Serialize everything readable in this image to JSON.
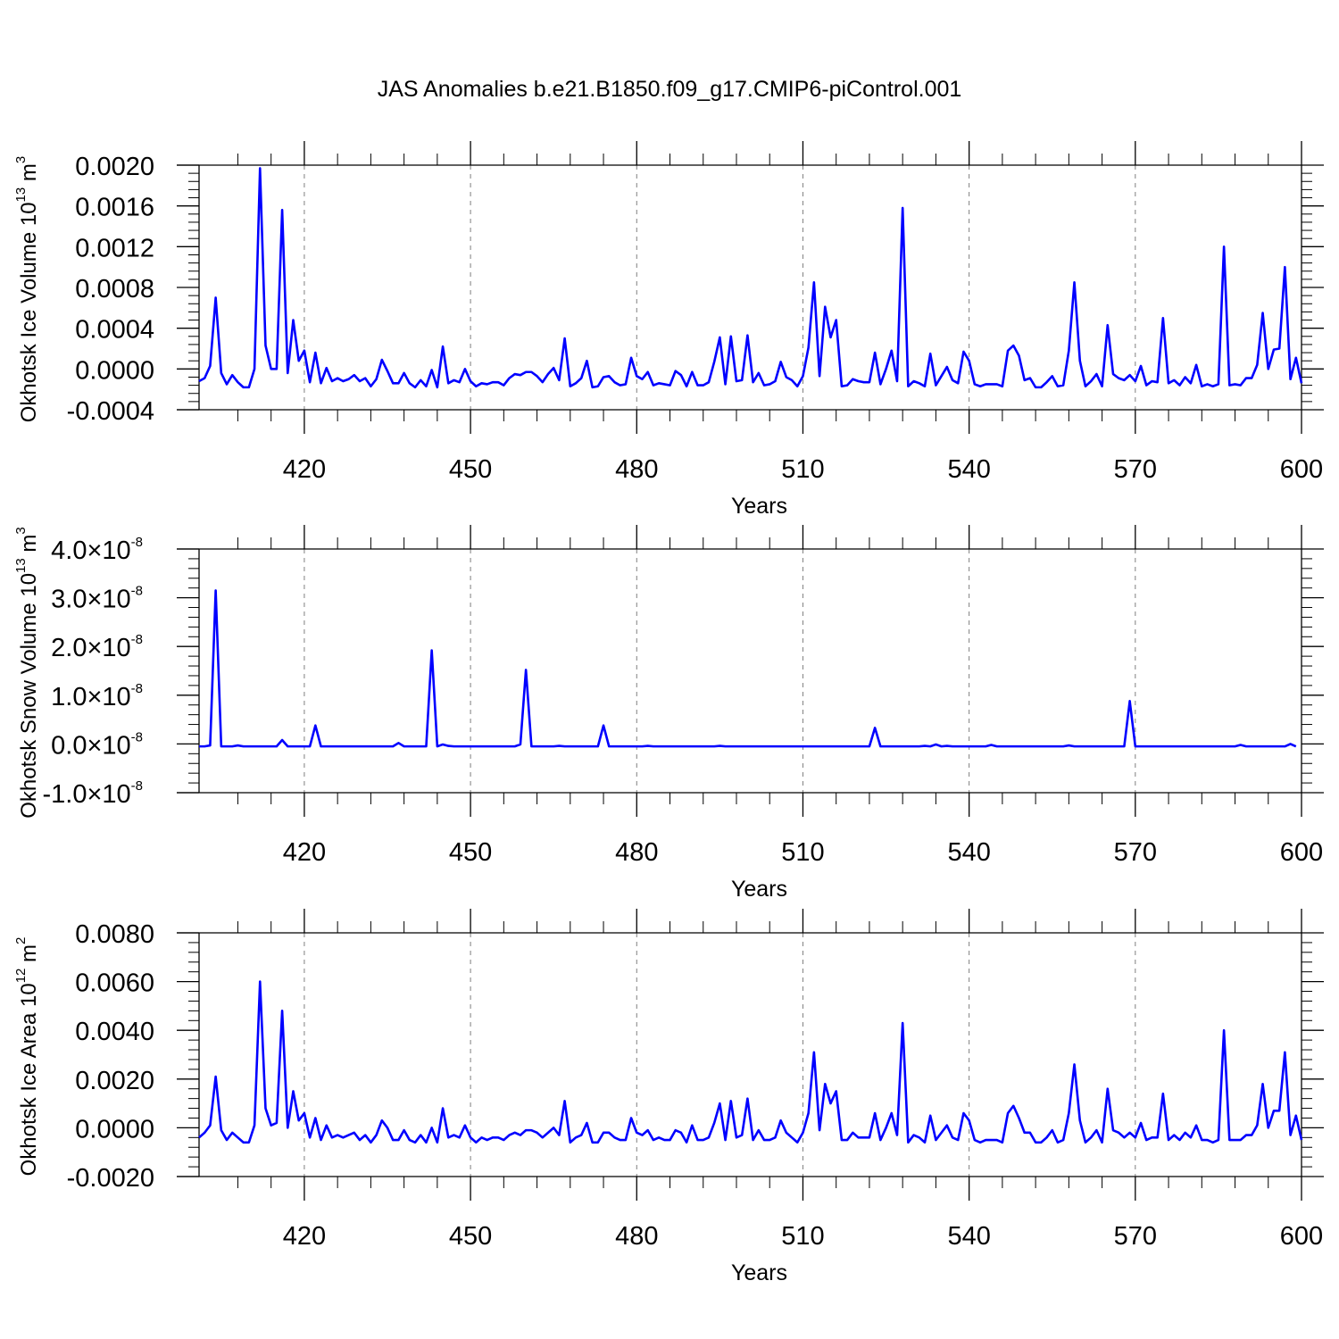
{
  "title": "JAS Anomalies b.e21.B1850.f09_g17.CMIP6-piControl.001",
  "colors": {
    "line": "#0000ff",
    "grid": "#7f7f7f",
    "axis": "#000000"
  },
  "chart_data": [
    {
      "type": "line",
      "ylabel": "Okhotsk Ice Volume 10",
      "ylabel_exp": "13",
      "ylabel_unit": " m",
      "ylabel_unit_exp": "3",
      "xlabel": "Years",
      "xlim": [
        401,
        600
      ],
      "ylim": [
        -0.0004,
        0.002
      ],
      "xticks": [
        420,
        450,
        480,
        510,
        540,
        570,
        600
      ],
      "xtick_labels": [
        "420",
        "450",
        "480",
        "510",
        "540",
        "570",
        "600"
      ],
      "yticks": [
        -0.0004,
        0.0,
        0.0004,
        0.0008,
        0.0012,
        0.0016,
        0.002
      ],
      "ytick_labels": [
        "-0.0004",
        "0.0000",
        "0.0004",
        "0.0008",
        "0.0012",
        "0.0016",
        "0.0020"
      ],
      "grid": "vertical dashed at major x ticks",
      "series": [
        {
          "x_start": 401,
          "values": [
            -0.00012,
            -9e-05,
            3e-05,
            0.0007,
            -4e-05,
            -0.00015,
            -6e-05,
            -0.00013,
            -0.00018,
            -0.00018,
            0.0,
            0.00197,
            0.00023,
            0.0,
            0.0,
            0.00156,
            -4e-05,
            0.00048,
            8e-05,
            0.00018,
            -0.00013,
            0.00016,
            -0.00014,
            1e-05,
            -0.00012,
            -9e-05,
            -0.00012,
            -0.0001,
            -6e-05,
            -0.00012,
            -9e-05,
            -0.00017,
            -0.0001,
            9e-05,
            -2e-05,
            -0.00014,
            -0.00014,
            -4e-05,
            -0.00014,
            -0.00018,
            -0.00011,
            -0.00017,
            -1e-05,
            -0.00018,
            0.00022,
            -0.00014,
            -0.00011,
            -0.00013,
            0.0,
            -0.00012,
            -0.00017,
            -0.00014,
            -0.00015,
            -0.00013,
            -0.00013,
            -0.00016,
            -9e-05,
            -5e-05,
            -6e-05,
            -3e-05,
            -3e-05,
            -7e-05,
            -0.00013,
            -5e-05,
            1e-05,
            -0.00011,
            0.0003,
            -0.00017,
            -0.00014,
            -9e-05,
            8e-05,
            -0.00018,
            -0.00017,
            -8e-05,
            -7e-05,
            -0.00013,
            -0.00016,
            -0.00015,
            0.00011,
            -7e-05,
            -0.0001,
            -3e-05,
            -0.00016,
            -0.00014,
            -0.00015,
            -0.00016,
            -2e-05,
            -6e-05,
            -0.00017,
            -3e-05,
            -0.00016,
            -0.00016,
            -0.00013,
            7e-05,
            0.00031,
            -0.00015,
            0.00032,
            -0.00012,
            -0.00011,
            0.00033,
            -0.00013,
            -4e-05,
            -0.00016,
            -0.00015,
            -0.00012,
            7e-05,
            -8e-05,
            -0.00011,
            -0.00017,
            -7e-05,
            0.00021,
            0.00085,
            -7e-05,
            0.00061,
            0.00031,
            0.00048,
            -0.00017,
            -0.00016,
            -0.0001,
            -0.00012,
            -0.00013,
            -0.00013,
            0.00016,
            -0.00015,
            0.0,
            0.00018,
            -0.00012,
            0.00158,
            -0.00017,
            -0.00012,
            -0.00014,
            -0.00017,
            0.00015,
            -0.00016,
            -7e-05,
            2e-05,
            -0.00011,
            -0.00014,
            0.00017,
            8e-05,
            -0.00015,
            -0.00017,
            -0.00015,
            -0.00015,
            -0.00015,
            -0.00017,
            0.00018,
            0.00023,
            0.00013,
            -0.00011,
            -9e-05,
            -0.00018,
            -0.00018,
            -0.00013,
            -7e-05,
            -0.00017,
            -0.00016,
            0.00018,
            0.00085,
            8e-05,
            -0.00017,
            -0.00012,
            -5e-05,
            -0.00017,
            0.00043,
            -5e-05,
            -9e-05,
            -0.00011,
            -6e-05,
            -0.00012,
            3e-05,
            -0.00016,
            -0.00012,
            -0.00013,
            0.0005,
            -0.00014,
            -0.00011,
            -0.00016,
            -8e-05,
            -0.00014,
            4e-05,
            -0.00017,
            -0.00015,
            -0.00017,
            -0.00015,
            0.0012,
            -0.00016,
            -0.00015,
            -0.00016,
            -9e-05,
            -9e-05,
            4e-05,
            0.00055,
            0.0,
            0.00019,
            0.0002,
            0.001,
            -0.0001,
            0.00011,
            -0.00014
          ]
        }
      ]
    },
    {
      "type": "line",
      "ylabel": "Okhotsk Snow Volume 10",
      "ylabel_exp": "13",
      "ylabel_unit": " m",
      "ylabel_unit_exp": "3",
      "xlabel": "Years",
      "xlim": [
        401,
        600
      ],
      "ylim": [
        -1e-08,
        4e-08
      ],
      "xticks": [
        420,
        450,
        480,
        510,
        540,
        570,
        600
      ],
      "xtick_labels": [
        "420",
        "450",
        "480",
        "510",
        "540",
        "570",
        "600"
      ],
      "yticks": [
        -1e-08,
        0.0,
        1e-08,
        2e-08,
        3e-08,
        4e-08
      ],
      "ytick_labels": [
        {
          "mant": "-1.0",
          "exp": "-8"
        },
        {
          "mant": "0.0",
          "exp": "-8"
        },
        {
          "mant": "1.0",
          "exp": "-8"
        },
        {
          "mant": "2.0",
          "exp": "-8"
        },
        {
          "mant": "3.0",
          "exp": "-8"
        },
        {
          "mant": "4.0",
          "exp": "-8"
        }
      ],
      "tick_times": "×10",
      "grid": "vertical dashed at major x ticks",
      "series": [
        {
          "x_start": 401,
          "values": [
            -5e-10,
            -5e-10,
            -3e-10,
            3.15e-08,
            -5e-10,
            -5e-10,
            -5e-10,
            -3e-10,
            -5e-10,
            -5e-10,
            -5e-10,
            -5e-10,
            -5e-10,
            -5e-10,
            -5e-10,
            8e-10,
            -5e-10,
            -5e-10,
            -5e-10,
            -5e-10,
            -5e-10,
            3.8e-09,
            -5e-10,
            -5e-10,
            -5e-10,
            -5e-10,
            -5e-10,
            -5e-10,
            -5e-10,
            -5e-10,
            -5e-10,
            -5e-10,
            -5e-10,
            -5e-10,
            -5e-10,
            -5e-10,
            2e-10,
            -5e-10,
            -5e-10,
            -5e-10,
            -5e-10,
            -5e-10,
            1.92e-08,
            -5e-10,
            -1e-10,
            -4e-10,
            -5e-10,
            -5e-10,
            -5e-10,
            -5e-10,
            -5e-10,
            -5e-10,
            -5e-10,
            -5e-10,
            -5e-10,
            -5e-10,
            -5e-10,
            -5e-10,
            -1e-10,
            1.52e-08,
            -5e-10,
            -5e-10,
            -5e-10,
            -5e-10,
            -5e-10,
            -4e-10,
            -5e-10,
            -5e-10,
            -5e-10,
            -5e-10,
            -5e-10,
            -5e-10,
            -5e-10,
            3.8e-09,
            -5e-10,
            -5e-10,
            -5e-10,
            -5e-10,
            -5e-10,
            -5e-10,
            -5e-10,
            -4e-10,
            -5e-10,
            -5e-10,
            -5e-10,
            -5e-10,
            -5e-10,
            -5e-10,
            -5e-10,
            -5e-10,
            -5e-10,
            -5e-10,
            -5e-10,
            -5e-10,
            -4e-10,
            -5e-10,
            -5e-10,
            -5e-10,
            -5e-10,
            -5e-10,
            -5e-10,
            -5e-10,
            -5e-10,
            -5e-10,
            -5e-10,
            -5e-10,
            -5e-10,
            -5e-10,
            -5e-10,
            -5e-10,
            -5e-10,
            -5e-10,
            -5e-10,
            -5e-10,
            -5e-10,
            -5e-10,
            -5e-10,
            -5e-10,
            -5e-10,
            -5e-10,
            -5e-10,
            -5e-10,
            3.3e-09,
            -5e-10,
            -5e-10,
            -5e-10,
            -5e-10,
            -5e-10,
            -5e-10,
            -5e-10,
            -5e-10,
            -4e-10,
            -5e-10,
            -1e-10,
            -5e-10,
            -4e-10,
            -5e-10,
            -5e-10,
            -5e-10,
            -5e-10,
            -5e-10,
            -5e-10,
            -5e-10,
            -2e-10,
            -5e-10,
            -5e-10,
            -5e-10,
            -5e-10,
            -5e-10,
            -5e-10,
            -5e-10,
            -5e-10,
            -5e-10,
            -5e-10,
            -5e-10,
            -5e-10,
            -5e-10,
            -3e-10,
            -5e-10,
            -5e-10,
            -5e-10,
            -5e-10,
            -5e-10,
            -5e-10,
            -5e-10,
            -5e-10,
            -5e-10,
            -5e-10,
            8.8e-09,
            -5e-10,
            -5e-10,
            -5e-10,
            -5e-10,
            -5e-10,
            -5e-10,
            -5e-10,
            -5e-10,
            -5e-10,
            -5e-10,
            -5e-10,
            -5e-10,
            -5e-10,
            -5e-10,
            -5e-10,
            -5e-10,
            -5e-10,
            -5e-10,
            -5e-10,
            -2e-10,
            -5e-10,
            -5e-10,
            -5e-10,
            -5e-10,
            -5e-10,
            -5e-10,
            -5e-10,
            -5e-10,
            0.0,
            -5e-10
          ]
        }
      ]
    },
    {
      "type": "line",
      "ylabel": "Okhotsk Ice Area 10",
      "ylabel_exp": "12",
      "ylabel_unit": " m",
      "ylabel_unit_exp": "2",
      "xlabel": "Years",
      "xlim": [
        401,
        600
      ],
      "ylim": [
        -0.002,
        0.008
      ],
      "xticks": [
        420,
        450,
        480,
        510,
        540,
        570,
        600
      ],
      "xtick_labels": [
        "420",
        "450",
        "480",
        "510",
        "540",
        "570",
        "600"
      ],
      "yticks": [
        -0.002,
        0.0,
        0.002,
        0.004,
        0.006,
        0.008
      ],
      "ytick_labels": [
        "-0.0020",
        "0.0000",
        "0.0020",
        "0.0040",
        "0.0060",
        "0.0080"
      ],
      "grid": "vertical dashed at major x ticks",
      "series": [
        {
          "x_start": 401,
          "values": [
            -0.0004,
            -0.0002,
            0.0001,
            0.0021,
            -0.0001,
            -0.0005,
            -0.0002,
            -0.0004,
            -0.0006,
            -0.0006,
            0.0001,
            0.006,
            0.0008,
            0.0001,
            0.0002,
            0.0048,
            0.0,
            0.0015,
            0.0003,
            0.0006,
            -0.0004,
            0.0004,
            -0.0005,
            0.0001,
            -0.0004,
            -0.0003,
            -0.0004,
            -0.0003,
            -0.0002,
            -0.0005,
            -0.0003,
            -0.0006,
            -0.0003,
            0.0003,
            0.0,
            -0.0005,
            -0.0005,
            -0.0001,
            -0.0005,
            -0.0006,
            -0.0003,
            -0.0006,
            0.0,
            -0.0006,
            0.0008,
            -0.0004,
            -0.0003,
            -0.0004,
            0.0001,
            -0.0004,
            -0.0006,
            -0.0004,
            -0.0005,
            -0.0004,
            -0.0004,
            -0.0005,
            -0.0003,
            -0.0002,
            -0.0003,
            -0.0001,
            -0.0001,
            -0.0002,
            -0.0004,
            -0.0002,
            0.0,
            -0.0003,
            0.0011,
            -0.0006,
            -0.0004,
            -0.0003,
            0.0002,
            -0.0006,
            -0.0006,
            -0.0002,
            -0.0002,
            -0.0004,
            -0.0005,
            -0.0005,
            0.0004,
            -0.0002,
            -0.0003,
            -0.0001,
            -0.0005,
            -0.0004,
            -0.0005,
            -0.0005,
            -0.0001,
            -0.0002,
            -0.0006,
            0.0001,
            -0.0005,
            -0.0005,
            -0.0004,
            0.0002,
            0.001,
            -0.0005,
            0.0011,
            -0.0004,
            -0.0003,
            0.0012,
            -0.0005,
            -0.0001,
            -0.0005,
            -0.0005,
            -0.0004,
            0.0003,
            -0.0002,
            -0.0004,
            -0.0006,
            -0.0002,
            0.0006,
            0.0031,
            -0.0001,
            0.0018,
            0.001,
            0.0015,
            -0.0005,
            -0.0005,
            -0.0002,
            -0.0004,
            -0.0004,
            -0.0004,
            0.0006,
            -0.0005,
            0.0,
            0.0006,
            -0.0003,
            0.0043,
            -0.0006,
            -0.0003,
            -0.0004,
            -0.0006,
            0.0005,
            -0.0005,
            -0.0002,
            0.0001,
            -0.0004,
            -0.0005,
            0.0006,
            0.0003,
            -0.0005,
            -0.0006,
            -0.0005,
            -0.0005,
            -0.0005,
            -0.0006,
            0.0006,
            0.0009,
            0.0004,
            -0.0002,
            -0.0002,
            -0.0006,
            -0.0006,
            -0.0004,
            -0.0001,
            -0.0006,
            -0.0005,
            0.0006,
            0.0026,
            0.0003,
            -0.0006,
            -0.0004,
            -0.0001,
            -0.0006,
            0.0016,
            -0.0001,
            -0.0002,
            -0.0004,
            -0.0002,
            -0.0004,
            0.0002,
            -0.0005,
            -0.0004,
            -0.0004,
            0.0014,
            -0.0005,
            -0.0003,
            -0.0005,
            -0.0002,
            -0.0004,
            0.0001,
            -0.0005,
            -0.0005,
            -0.0006,
            -0.0005,
            0.004,
            -0.0005,
            -0.0005,
            -0.0005,
            -0.0003,
            -0.0003,
            0.0001,
            0.0018,
            0.0,
            0.0007,
            0.0007,
            0.0031,
            -0.0003,
            0.0005,
            -0.0005
          ]
        }
      ]
    }
  ]
}
